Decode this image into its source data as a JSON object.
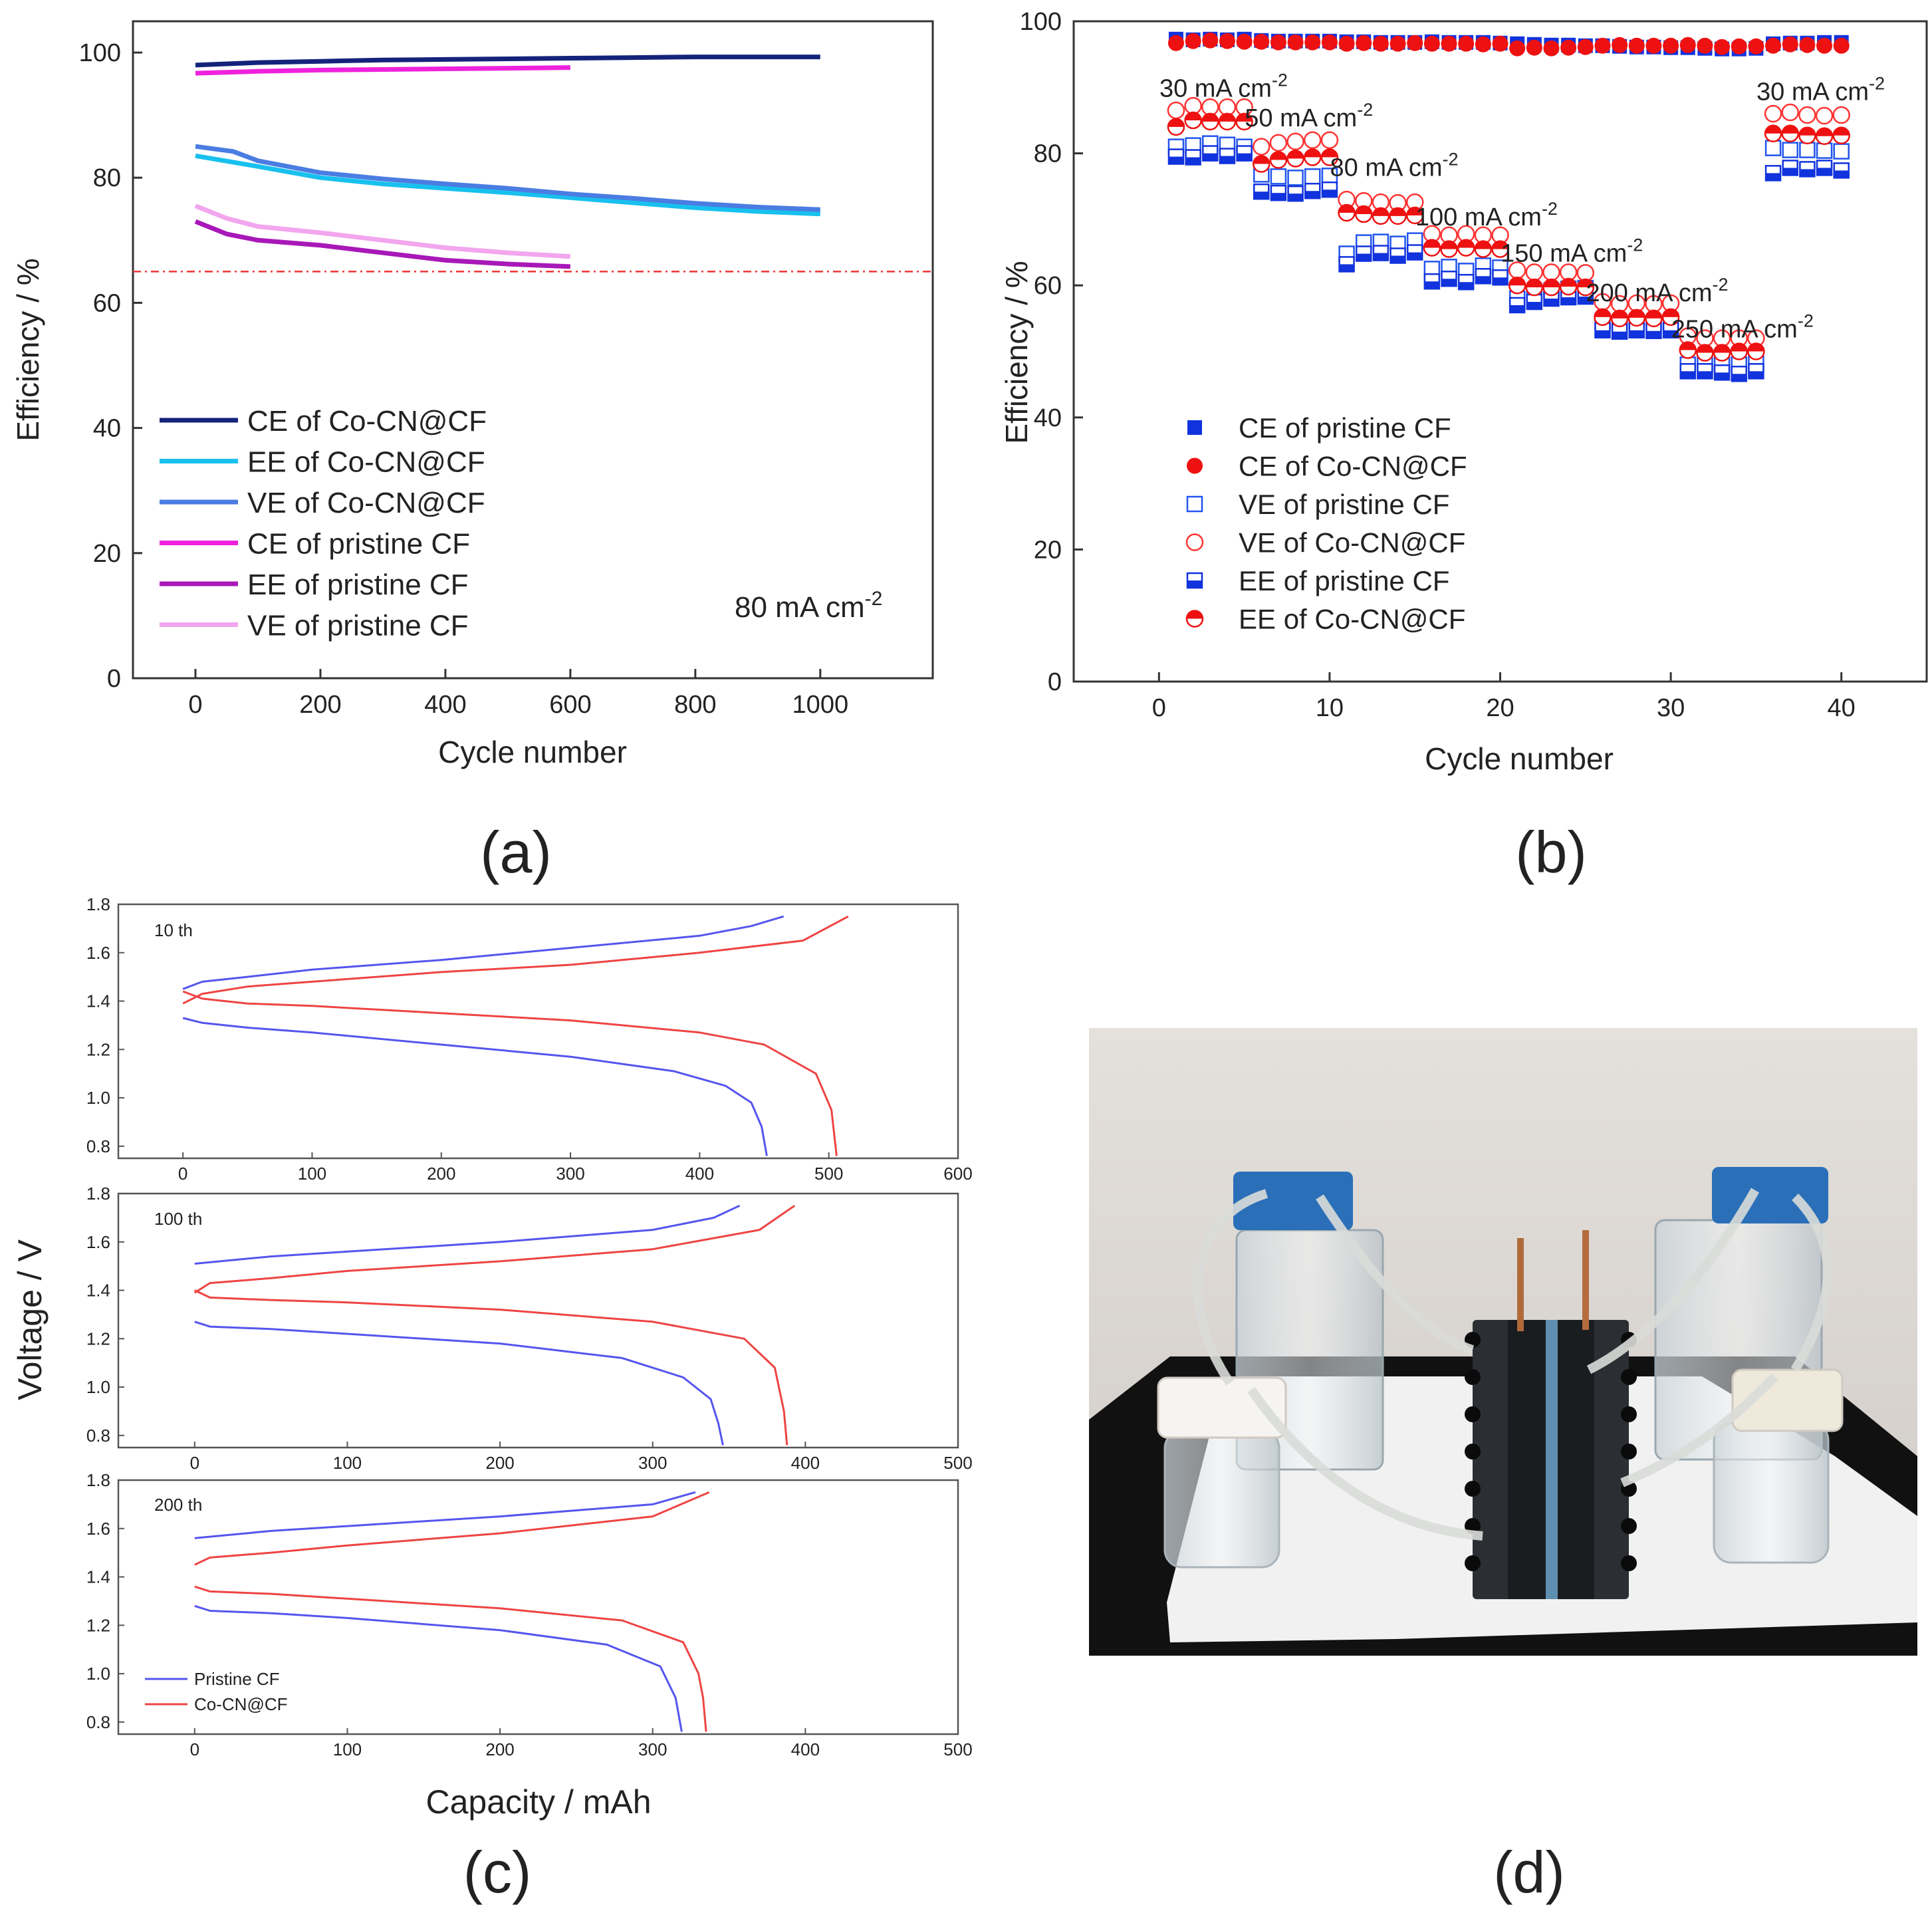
{
  "figure": {
    "labels": {
      "a": "(a)",
      "b": "(b)",
      "c": "(c)",
      "d": "(d)"
    }
  },
  "chart_data": [
    {
      "panel": "a",
      "type": "line",
      "xlabel": "Cycle number",
      "ylabel": "Efficiency / %",
      "xlim": [
        -100,
        1180
      ],
      "ylim": [
        0,
        105
      ],
      "xticks": [
        0,
        200,
        400,
        600,
        800,
        1000
      ],
      "yticks": [
        0,
        20,
        40,
        60,
        80,
        100
      ],
      "annotation": "80 mA cm",
      "annotation_sup": "-2",
      "reference_line": {
        "y": 65,
        "style": "dash-dot",
        "color": "#ee3333"
      },
      "legend_position": "bottom-left",
      "series": [
        {
          "name": "CE of Co-CN@CF",
          "color": "#14237a",
          "x": [
            0,
            100,
            200,
            300,
            400,
            500,
            600,
            700,
            800,
            900,
            1000
          ],
          "y": [
            98.0,
            98.4,
            98.6,
            98.8,
            98.9,
            99.0,
            99.1,
            99.2,
            99.3,
            99.3,
            99.3
          ]
        },
        {
          "name": "EE of Co-CN@CF",
          "color": "#18c0ee",
          "x": [
            0,
            100,
            200,
            300,
            400,
            500,
            600,
            700,
            800,
            900,
            1000
          ],
          "y": [
            83.5,
            81.8,
            80.0,
            79.0,
            78.3,
            77.6,
            76.8,
            76.0,
            75.2,
            74.6,
            74.2
          ]
        },
        {
          "name": "VE of Co-CN@CF",
          "color": "#4a7de2",
          "x": [
            0,
            60,
            100,
            200,
            300,
            400,
            500,
            600,
            700,
            800,
            900,
            1000
          ],
          "y": [
            85.0,
            84.2,
            82.7,
            80.8,
            79.8,
            79.0,
            78.3,
            77.4,
            76.7,
            75.9,
            75.3,
            74.9
          ]
        },
        {
          "name": "CE of pristine CF",
          "color": "#ee22dd",
          "x": [
            0,
            100,
            200,
            300,
            400,
            500,
            600
          ],
          "y": [
            96.7,
            97.0,
            97.2,
            97.3,
            97.4,
            97.5,
            97.6
          ]
        },
        {
          "name": "EE of pristine CF",
          "color": "#a818b8",
          "x": [
            0,
            50,
            100,
            200,
            300,
            400,
            500,
            600
          ],
          "y": [
            73.0,
            71.0,
            70.0,
            69.2,
            68.0,
            66.8,
            66.2,
            65.8
          ]
        },
        {
          "name": "VE of pristine CF",
          "color": "#f2a6ee",
          "x": [
            0,
            50,
            100,
            200,
            300,
            400,
            500,
            600
          ],
          "y": [
            75.5,
            73.5,
            72.2,
            71.2,
            70.0,
            68.8,
            68.0,
            67.4
          ]
        }
      ]
    },
    {
      "panel": "b",
      "type": "scatter",
      "xlabel": "Cycle number",
      "ylabel": "Efficiency / %",
      "xlim": [
        -5,
        45
      ],
      "ylim": [
        0,
        100
      ],
      "xticks": [
        0,
        10,
        20,
        30,
        40
      ],
      "yticks": [
        0,
        20,
        40,
        60,
        80,
        100
      ],
      "legend_position": "bottom-left",
      "rate_labels": [
        {
          "text": "30 mA cm",
          "sup": "-2",
          "cycle": 1,
          "level": 90
        },
        {
          "text": "50 mA cm",
          "sup": "-2",
          "cycle": 6,
          "level": 85.5
        },
        {
          "text": "80 mA cm",
          "sup": "-2",
          "cycle": 11,
          "level": 78
        },
        {
          "text": "100 mA cm",
          "sup": "-2",
          "cycle": 16,
          "level": 70.5
        },
        {
          "text": "150 mA cm",
          "sup": "-2",
          "cycle": 21,
          "level": 65
        },
        {
          "text": "200 mA cm",
          "sup": "-2",
          "cycle": 26,
          "level": 59
        },
        {
          "text": "250 mA cm",
          "sup": "-2",
          "cycle": 31,
          "level": 53.5
        },
        {
          "text": "30 mA cm",
          "sup": "-2",
          "cycle": 36,
          "level": 89.5
        }
      ],
      "cycles": [
        1,
        2,
        3,
        4,
        5,
        6,
        7,
        8,
        9,
        10,
        11,
        12,
        13,
        14,
        15,
        16,
        17,
        18,
        19,
        20,
        21,
        22,
        23,
        24,
        25,
        26,
        27,
        28,
        29,
        30,
        31,
        32,
        33,
        34,
        35,
        36,
        37,
        38,
        39,
        40
      ],
      "series": [
        {
          "name": "CE of pristine CF",
          "marker": "square-filled",
          "color": "#1133dd",
          "values": [
            97.3,
            97.2,
            97.3,
            97.2,
            97.3,
            97.1,
            97.0,
            97.0,
            97.0,
            97.0,
            96.9,
            96.9,
            96.8,
            96.8,
            96.8,
            96.9,
            96.8,
            96.8,
            96.8,
            96.7,
            96.6,
            96.5,
            96.4,
            96.4,
            96.3,
            96.3,
            96.2,
            96.1,
            96.1,
            96.0,
            96.0,
            95.9,
            95.8,
            95.8,
            95.9,
            96.6,
            96.7,
            96.7,
            96.8,
            96.8
          ]
        },
        {
          "name": "CE of Co-CN@CF",
          "marker": "circle-filled",
          "color": "#ee1111",
          "values": [
            96.7,
            97.0,
            97.1,
            97.0,
            96.9,
            96.9,
            96.8,
            96.8,
            96.8,
            96.8,
            96.6,
            96.7,
            96.6,
            96.6,
            96.7,
            96.6,
            96.6,
            96.6,
            96.5,
            96.6,
            95.9,
            96.0,
            95.9,
            96.0,
            96.1,
            96.3,
            96.4,
            96.3,
            96.3,
            96.3,
            96.4,
            96.3,
            96.1,
            96.2,
            96.2,
            96.3,
            96.5,
            96.4,
            96.3,
            96.3
          ]
        },
        {
          "name": "VE of pristine CF",
          "marker": "square-open",
          "color": "#2255ee",
          "values": [
            81.0,
            81.2,
            81.5,
            81.3,
            81.0,
            76.8,
            76.5,
            76.3,
            76.5,
            76.6,
            64.8,
            66.5,
            66.6,
            66.3,
            66.8,
            62.5,
            62.8,
            62.2,
            63.0,
            62.7,
            58.0,
            58.8,
            59.2,
            59.5,
            59.6,
            54.5,
            54.2,
            54.5,
            54.3,
            54.5,
            48.0,
            48.3,
            48.0,
            48.0,
            48.2,
            80.8,
            80.5,
            80.5,
            80.4,
            80.3
          ]
        },
        {
          "name": "VE of Co-CN@CF",
          "marker": "circle-open",
          "color": "#ff3333",
          "values": [
            86.5,
            87.2,
            87.0,
            87.0,
            87.0,
            81.0,
            81.6,
            81.8,
            82.0,
            82.0,
            73.0,
            72.8,
            72.6,
            72.5,
            72.6,
            67.8,
            67.6,
            67.8,
            67.6,
            67.6,
            62.3,
            62.0,
            62.0,
            62.0,
            61.9,
            57.5,
            57.2,
            57.3,
            57.2,
            57.3,
            52.3,
            52.0,
            52.0,
            52.0,
            52.0,
            86.0,
            86.2,
            85.8,
            85.7,
            85.8
          ]
        },
        {
          "name": "EE of pristine CF",
          "marker": "square-half",
          "color": "#1133dd",
          "values": [
            79.5,
            79.4,
            80.0,
            79.6,
            80.0,
            74.2,
            74.0,
            73.9,
            74.3,
            74.5,
            63.2,
            64.8,
            64.9,
            64.5,
            65.0,
            60.6,
            61.0,
            60.5,
            61.4,
            61.2,
            57.0,
            57.5,
            58.0,
            58.2,
            58.3,
            53.2,
            53.0,
            53.2,
            53.1,
            53.2,
            47.0,
            47.0,
            46.8,
            46.6,
            47.0,
            77.0,
            77.8,
            77.6,
            77.8,
            77.4
          ]
        },
        {
          "name": "EE of Co-CN@CF",
          "marker": "circle-half",
          "color": "#ee1111",
          "values": [
            84.0,
            85.0,
            84.8,
            84.8,
            84.8,
            78.4,
            79.0,
            79.2,
            79.4,
            79.4,
            71.0,
            70.8,
            70.5,
            70.5,
            70.6,
            65.7,
            65.5,
            65.7,
            65.5,
            65.5,
            60.0,
            59.7,
            59.7,
            59.8,
            59.7,
            55.2,
            55.0,
            55.1,
            55.0,
            55.2,
            50.2,
            49.8,
            49.8,
            50.0,
            50.0,
            83.0,
            83.0,
            82.7,
            82.6,
            82.7
          ]
        }
      ]
    },
    {
      "panel": "c",
      "type": "line",
      "xlabel": "Capacity / mAh",
      "ylabel": "Voltage / V",
      "yticks": [
        0.8,
        1.0,
        1.2,
        1.4,
        1.6,
        1.8
      ],
      "legend": [
        {
          "name": "Pristine CF",
          "color": "#5555ee"
        },
        {
          "name": "Co-CN@CF",
          "color": "#ee4444"
        }
      ],
      "subplots": [
        {
          "label": "10 th",
          "xlim": [
            -50,
            600
          ],
          "ylim": [
            0.75,
            1.8
          ],
          "xticks": [
            0,
            100,
            200,
            300,
            400,
            500,
            600
          ],
          "series": [
            {
              "name": "Pristine CF charge",
              "color": "#5555ee",
              "x": [
                0,
                15,
                50,
                100,
                200,
                300,
                400,
                440,
                465
              ],
              "y": [
                1.45,
                1.48,
                1.5,
                1.53,
                1.57,
                1.62,
                1.67,
                1.71,
                1.75
              ]
            },
            {
              "name": "Pristine CF discharge",
              "color": "#5555ee",
              "x": [
                0,
                15,
                50,
                100,
                200,
                300,
                380,
                420,
                440,
                448,
                452
              ],
              "y": [
                1.33,
                1.31,
                1.29,
                1.27,
                1.22,
                1.17,
                1.11,
                1.05,
                0.98,
                0.88,
                0.76
              ]
            },
            {
              "name": "Co-CN@CF charge",
              "color": "#ee4444",
              "x": [
                0,
                15,
                50,
                100,
                200,
                300,
                400,
                480,
                515
              ],
              "y": [
                1.39,
                1.43,
                1.46,
                1.48,
                1.52,
                1.55,
                1.6,
                1.65,
                1.75
              ]
            },
            {
              "name": "Co-CN@CF discharge",
              "color": "#ee4444",
              "x": [
                0,
                15,
                50,
                100,
                200,
                300,
                400,
                450,
                490,
                502,
                506
              ],
              "y": [
                1.44,
                1.41,
                1.39,
                1.38,
                1.35,
                1.32,
                1.27,
                1.22,
                1.1,
                0.95,
                0.76
              ]
            }
          ]
        },
        {
          "label": "100 th",
          "xlim": [
            -50,
            500
          ],
          "ylim": [
            0.75,
            1.8
          ],
          "xticks": [
            0,
            100,
            200,
            300,
            400,
            500
          ],
          "series": [
            {
              "name": "Pristine CF charge",
              "color": "#5555ee",
              "x": [
                0,
                50,
                100,
                200,
                300,
                340,
                357
              ],
              "y": [
                1.51,
                1.54,
                1.56,
                1.6,
                1.65,
                1.7,
                1.75
              ]
            },
            {
              "name": "Pristine CF discharge",
              "color": "#5555ee",
              "x": [
                0,
                10,
                50,
                100,
                200,
                280,
                320,
                338,
                343,
                346
              ],
              "y": [
                1.27,
                1.25,
                1.24,
                1.22,
                1.18,
                1.12,
                1.04,
                0.95,
                0.85,
                0.76
              ]
            },
            {
              "name": "Co-CN@CF charge",
              "color": "#ee4444",
              "x": [
                0,
                10,
                50,
                100,
                200,
                300,
                370,
                393
              ],
              "y": [
                1.39,
                1.43,
                1.45,
                1.48,
                1.52,
                1.57,
                1.65,
                1.75
              ]
            },
            {
              "name": "Co-CN@CF discharge",
              "color": "#ee4444",
              "x": [
                0,
                10,
                50,
                100,
                200,
                300,
                360,
                380,
                386,
                388
              ],
              "y": [
                1.4,
                1.37,
                1.36,
                1.35,
                1.32,
                1.27,
                1.2,
                1.08,
                0.9,
                0.76
              ]
            }
          ]
        },
        {
          "label": "200 th",
          "xlim": [
            -50,
            500
          ],
          "ylim": [
            0.75,
            1.8
          ],
          "xticks": [
            0,
            100,
            200,
            300,
            400,
            500
          ],
          "series": [
            {
              "name": "Pristine CF charge",
              "color": "#5555ee",
              "x": [
                0,
                50,
                100,
                200,
                300,
                328
              ],
              "y": [
                1.56,
                1.59,
                1.61,
                1.65,
                1.7,
                1.75
              ]
            },
            {
              "name": "Pristine CF discharge",
              "color": "#5555ee",
              "x": [
                0,
                10,
                50,
                100,
                200,
                270,
                305,
                315,
                319
              ],
              "y": [
                1.28,
                1.26,
                1.25,
                1.23,
                1.18,
                1.12,
                1.03,
                0.9,
                0.76
              ]
            },
            {
              "name": "Co-CN@CF charge",
              "color": "#ee4444",
              "x": [
                0,
                10,
                50,
                100,
                200,
                300,
                337
              ],
              "y": [
                1.45,
                1.48,
                1.5,
                1.53,
                1.58,
                1.65,
                1.75
              ]
            },
            {
              "name": "Co-CN@CF discharge",
              "color": "#ee4444",
              "x": [
                0,
                10,
                50,
                100,
                200,
                280,
                320,
                330,
                333,
                335
              ],
              "y": [
                1.36,
                1.34,
                1.33,
                1.31,
                1.27,
                1.22,
                1.13,
                1.0,
                0.9,
                0.76
              ]
            }
          ]
        }
      ]
    }
  ]
}
